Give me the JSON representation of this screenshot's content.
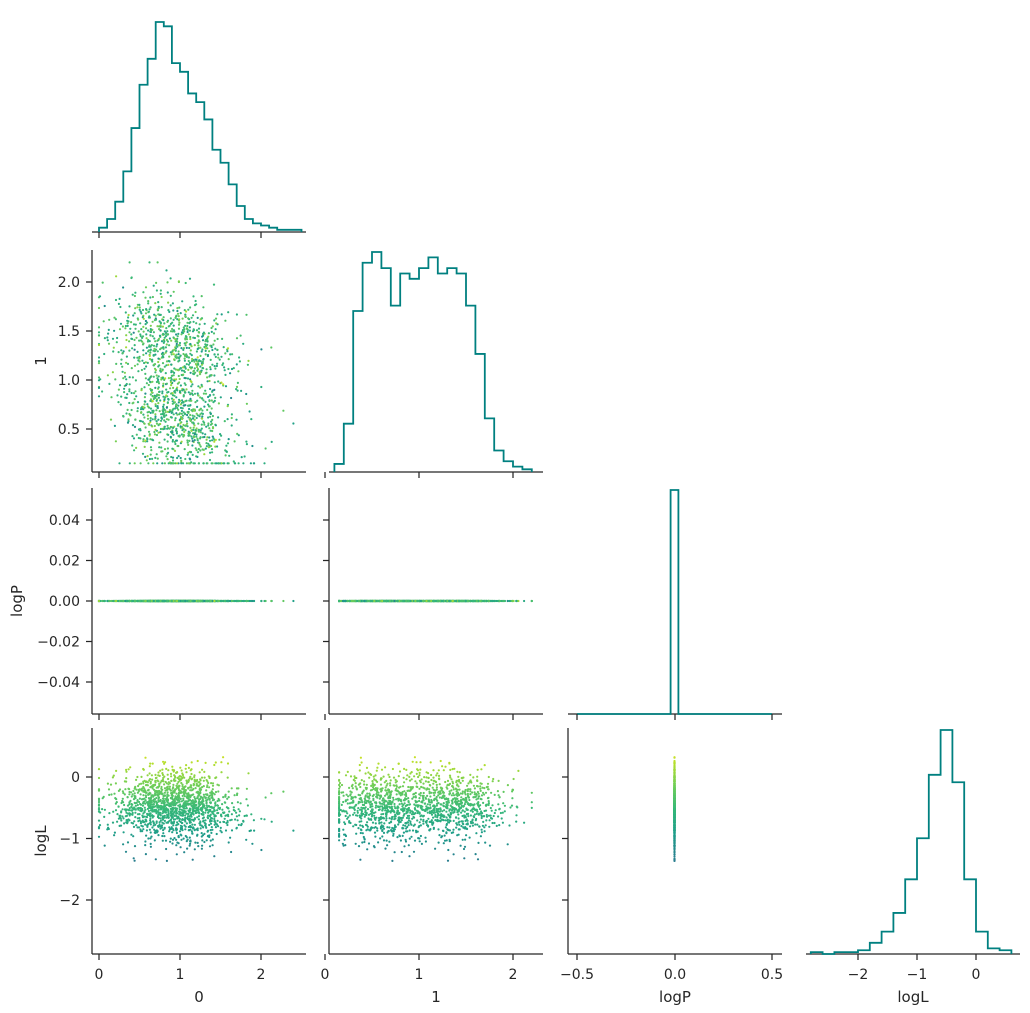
{
  "chart_data": {
    "type": "corner",
    "variables": [
      "0",
      "1",
      "logP",
      "logL"
    ],
    "ranges": {
      "0": [
        -0.12,
        2.5
      ],
      "1": [
        0.05,
        2.35
      ],
      "logP": [
        -0.055,
        0.055
      ],
      "logL": [
        -2.9,
        0.8
      ]
    },
    "ticks": {
      "0": [
        0,
        1,
        2
      ],
      "1": [
        0,
        1,
        2
      ],
      "logP": [
        -0.5,
        0,
        0.5
      ],
      "logL": [
        -2,
        -1,
        0
      ]
    },
    "tick_labels": {
      "0": [
        "0",
        "1",
        "2"
      ],
      "1": [
        "0",
        "1",
        "2"
      ],
      "logP": [
        "−0.5",
        "0.0",
        "0.5"
      ],
      "logL": [
        "−2",
        "−1",
        "0"
      ]
    },
    "y_ticks": {
      "1": [
        0.5,
        1.0,
        1.5,
        2.0
      ],
      "logP": [
        -0.04,
        -0.02,
        0,
        0.02,
        0.04
      ],
      "logL": [
        -2,
        -1,
        0
      ]
    },
    "y_tick_labels": {
      "1": [
        "0.5",
        "1.0",
        "1.5",
        "2.0"
      ],
      "logP": [
        "−0.04",
        "−0.02",
        "0.00",
        "0.02",
        "0.04"
      ],
      "logL": [
        "−2",
        "−1",
        "0"
      ]
    },
    "axis_labels": {
      "x": [
        "0",
        "1",
        "logP",
        "logL"
      ],
      "y": [
        "",
        "1",
        "logP",
        "logL"
      ]
    },
    "hist_color": "#008080",
    "colormap": "viridis",
    "histograms": {
      "0": {
        "edges": [
          0.0,
          0.1,
          0.2,
          0.3,
          0.4,
          0.5,
          0.6,
          0.7,
          0.8,
          0.9,
          1.0,
          1.1,
          1.2,
          1.3,
          1.4,
          1.5,
          1.6,
          1.7,
          1.8,
          1.9,
          2.0,
          2.1,
          2.2,
          2.3,
          2.4,
          2.5
        ],
        "counts": [
          2,
          6,
          14,
          28,
          48,
          68,
          80,
          97,
          95,
          78,
          74,
          64,
          60,
          52,
          38,
          32,
          22,
          12,
          6,
          4,
          3,
          2,
          1,
          1,
          1
        ]
      },
      "1": {
        "edges": [
          0.1,
          0.2,
          0.3,
          0.4,
          0.5,
          0.6,
          0.7,
          0.8,
          0.9,
          1.0,
          1.1,
          1.2,
          1.3,
          1.4,
          1.5,
          1.6,
          1.7,
          1.8,
          1.9,
          2.0,
          2.1,
          2.2
        ],
        "counts": [
          3,
          18,
          60,
          78,
          82,
          76,
          62,
          74,
          72,
          76,
          80,
          74,
          76,
          74,
          62,
          44,
          20,
          8,
          4,
          2,
          1
        ]
      },
      "logP": {
        "edges": [
          -0.5,
          -0.02,
          0.02,
          0.5
        ],
        "counts": [
          0,
          1,
          0
        ]
      },
      "logL": {
        "edges": [
          -2.8,
          -2.6,
          -2.4,
          -2.2,
          -2.0,
          -1.8,
          -1.6,
          -1.4,
          -1.2,
          -1.0,
          -0.8,
          -0.6,
          -0.4,
          -0.2,
          0.0,
          0.2,
          0.4,
          0.6
        ],
        "counts": [
          1,
          0,
          1,
          1,
          2,
          6,
          12,
          22,
          40,
          62,
          96,
          120,
          92,
          40,
          12,
          3,
          2
        ]
      }
    },
    "scatter_point_count": 1500
  }
}
